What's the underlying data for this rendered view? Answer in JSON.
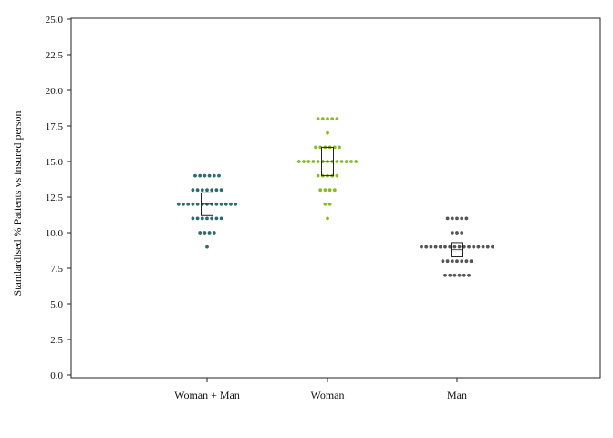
{
  "chart_data": {
    "type": "scatter",
    "subtype": "dot plot with box",
    "title": "",
    "xlabel": "",
    "ylabel": "Standardised % Patients vs insured person",
    "ylim": [
      0,
      25
    ],
    "yticks": [
      "0.0",
      "2.5",
      "5.0",
      "7.5",
      "10.0",
      "12.5",
      "15.0",
      "17.5",
      "20.0",
      "22.5",
      "25.0"
    ],
    "categories": [
      "Woman + Man",
      "Woman",
      "Man"
    ],
    "grid": false,
    "legend": "none",
    "series": [
      {
        "category": "Woman + Man",
        "color": "#2e6b6e",
        "box": {
          "q1": 11.2,
          "q3": 12.8,
          "median": 12.0
        },
        "rows": [
          {
            "y": 14,
            "count": 6
          },
          {
            "y": 13,
            "count": 7
          },
          {
            "y": 12,
            "count": 13
          },
          {
            "y": 11,
            "count": 7
          },
          {
            "y": 10,
            "count": 4
          },
          {
            "y": 9,
            "count": 1
          }
        ]
      },
      {
        "category": "Woman",
        "color": "#86bd24",
        "box": {
          "q1": 14.0,
          "q3": 16.0,
          "median": 15.0
        },
        "rows": [
          {
            "y": 18,
            "count": 5
          },
          {
            "y": 17,
            "count": 1
          },
          {
            "y": 16,
            "count": 6
          },
          {
            "y": 15,
            "count": 13
          },
          {
            "y": 14,
            "count": 5
          },
          {
            "y": 13,
            "count": 4
          },
          {
            "y": 12,
            "count": 2
          },
          {
            "y": 11,
            "count": 1
          }
        ]
      },
      {
        "category": "Man",
        "color": "#555555",
        "box": {
          "q1": 8.3,
          "q3": 9.3,
          "median": 8.8
        },
        "rows": [
          {
            "y": 11,
            "count": 5
          },
          {
            "y": 10,
            "count": 3
          },
          {
            "y": 9,
            "count": 16
          },
          {
            "y": 8,
            "count": 7
          },
          {
            "y": 7,
            "count": 6
          }
        ]
      }
    ]
  }
}
